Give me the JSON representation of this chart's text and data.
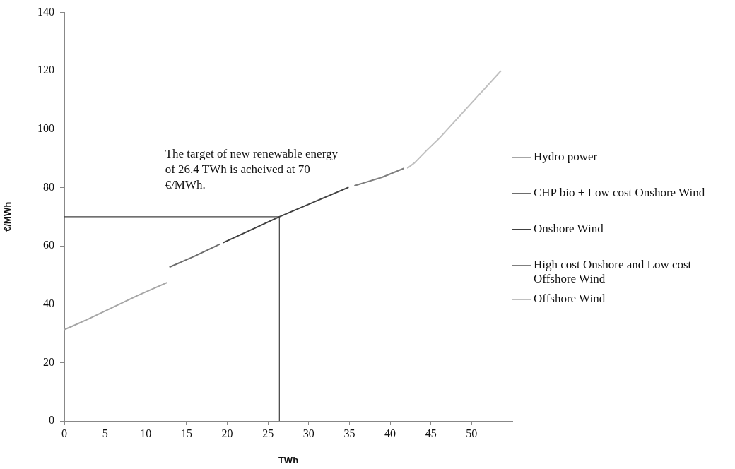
{
  "chart_data": {
    "type": "line",
    "xlabel": "TWh",
    "ylabel": "€/MWh",
    "xlim": [
      0,
      55
    ],
    "xticks": [
      0,
      5,
      10,
      15,
      20,
      25,
      30,
      35,
      40,
      45,
      50
    ],
    "ylim": [
      0,
      140
    ],
    "yticks": [
      0,
      20,
      40,
      60,
      80,
      100,
      120,
      140
    ],
    "grid": false,
    "legend": "right",
    "marker": "none",
    "line_style": "solid",
    "series": [
      {
        "name": "Hydro power",
        "color": "#a6a6a6",
        "x": [
          0,
          1,
          3,
          6,
          9,
          12.6
        ],
        "values": [
          31.3,
          32.5,
          35,
          39,
          43,
          47.4
        ]
      },
      {
        "name": "CHP bio + Low cost Onshore Wind",
        "color": "#6d6d6d",
        "x": [
          12.9,
          16,
          19.1
        ],
        "values": [
          52.7,
          56.5,
          60.6
        ]
      },
      {
        "name": "Onshore Wind",
        "color": "#404040",
        "x": [
          19.5,
          26.4,
          34.9
        ],
        "values": [
          61.1,
          70,
          80.1
        ]
      },
      {
        "name": "High cost Onshore and Low cost Offshore Wind",
        "color": "#7f7f7f",
        "x": [
          35.6,
          39,
          41.7
        ],
        "values": [
          80.6,
          83.5,
          86.6
        ]
      },
      {
        "name": "Offshore Wind",
        "color": "#c0c0c0",
        "x": [
          42.1,
          43,
          44.5,
          46,
          53.6
        ],
        "values": [
          86.6,
          88.5,
          92.8,
          96.8,
          120
        ]
      }
    ],
    "ref_lines": [
      {
        "axis": "y",
        "value": 70,
        "color": "#404040"
      },
      {
        "axis": "x",
        "value": 26.4,
        "color": "#404040"
      }
    ],
    "annotations": [
      "The target of new renewable energy of 26.4 TWh is acheived at 70 €/MWh."
    ]
  }
}
